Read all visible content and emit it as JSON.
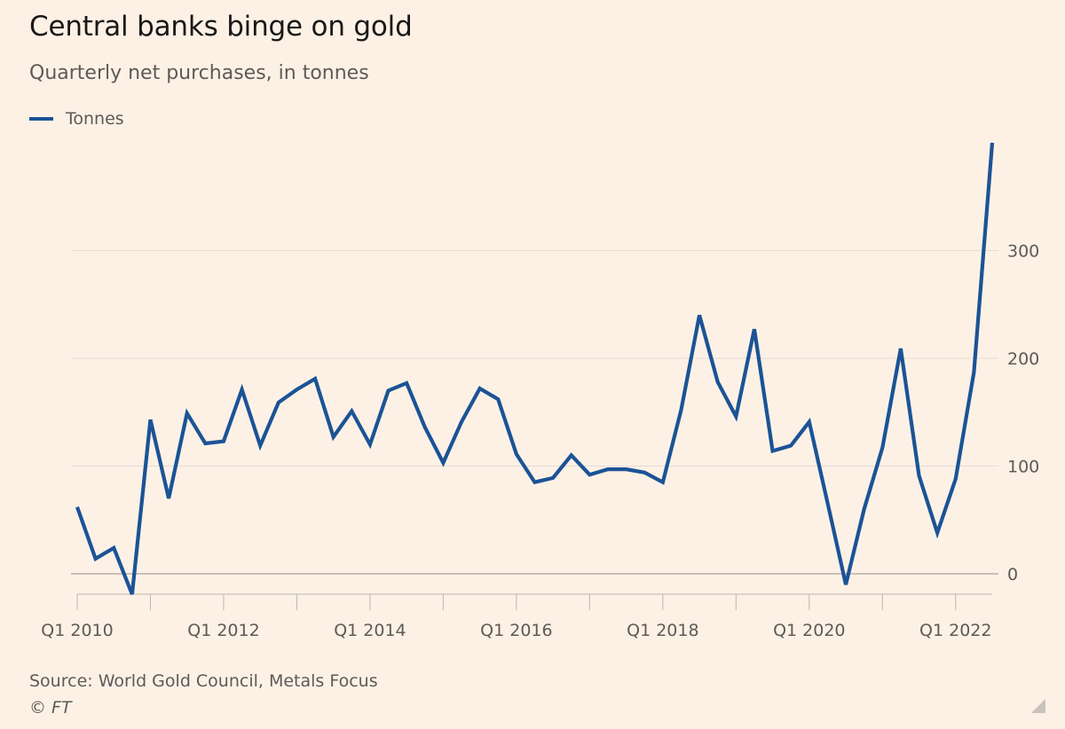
{
  "chart_data": {
    "type": "line",
    "title": "Central banks binge on gold",
    "subtitle": "Quarterly net purchases, in tonnes",
    "series": [
      {
        "name": "Tonnes",
        "color": "#1b5396",
        "values": [
          62,
          14,
          24,
          -19,
          143,
          70,
          149,
          121,
          123,
          171,
          119,
          159,
          171,
          181,
          127,
          151,
          120,
          170,
          177,
          136,
          103,
          141,
          172,
          162,
          111,
          85,
          89,
          110,
          92,
          97,
          97,
          94,
          85,
          152,
          240,
          178,
          146,
          227,
          114,
          119,
          141,
          66,
          -10,
          60,
          117,
          209,
          91,
          38,
          88,
          187,
          400
        ]
      }
    ],
    "x_start": "Q1 2010",
    "x_end": "Q3 2022",
    "xtick_labels": [
      "Q1 2010",
      "Q1 2012",
      "Q1 2014",
      "Q1 2016",
      "Q1 2018",
      "Q1 2020",
      "Q1 2022"
    ],
    "ytick_labels": [
      "0",
      "100",
      "200",
      "300"
    ],
    "yticks": [
      0,
      100,
      200,
      300
    ],
    "ylim": [
      -25,
      400
    ],
    "grid": true,
    "y_axis_side": "right",
    "legend_position": "top-left",
    "source": "Source: World Gold Council, Metals Focus",
    "copyright": "© FT"
  }
}
